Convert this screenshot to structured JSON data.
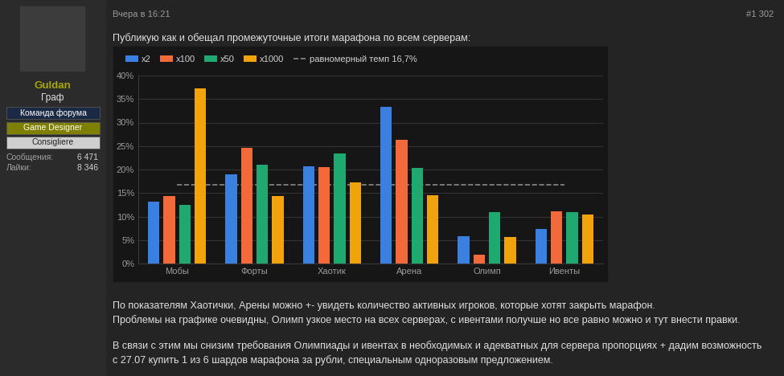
{
  "user": {
    "name": "Guldan",
    "rank": "Граф",
    "badges": [
      "Команда форума",
      "Game Designer",
      "Consigliere"
    ],
    "stats": [
      {
        "label": "Сообщения:",
        "value": "6 471"
      },
      {
        "label": "Лайки:",
        "value": "8 346"
      }
    ]
  },
  "post": {
    "date": "Вчера в 16:21",
    "number": "#1 302",
    "intro": "Публикую как и обещал промежуточные итоги марафона по всем серверам:",
    "paragraphs": [
      [
        "По показателям Хаотички, Арены можно +- увидеть количество активных игроков, которые хотят закрыть марафон.",
        "Проблемы на графике очевидны, Олимп узкое место на всех серверах, с ивентами получше но все равно можно и тут внести правки."
      ],
      [
        "В связи с этим мы снизим требования Олимпиады и ивентах в необходимых и адекватных для сервера пропорциях + дадим возможность",
        "с 27.07 купить 1 из 6 шардов марафона за рубли, специальным одноразовым предложением."
      ]
    ]
  },
  "chart_data": {
    "type": "bar",
    "categories": [
      "Мобы",
      "Форты",
      "Хаотик",
      "Арена",
      "Олимп",
      "Ивенты"
    ],
    "series": [
      {
        "name": "x2",
        "color": "#3a80e0",
        "values": [
          13.2,
          18.9,
          20.6,
          33.4,
          5.8,
          7.3
        ]
      },
      {
        "name": "x100",
        "color": "#f26a3a",
        "values": [
          14.3,
          24.7,
          20.5,
          26.4,
          1.8,
          11.1
        ]
      },
      {
        "name": "x50",
        "color": "#1fa971",
        "values": [
          12.4,
          21.0,
          23.4,
          20.4,
          10.9,
          10.9
        ]
      },
      {
        "name": "x1000",
        "color": "#f0a30a",
        "values": [
          37.2,
          14.3,
          17.2,
          14.6,
          5.6,
          10.4
        ]
      }
    ],
    "reference_line": {
      "value": 16.7,
      "label": "равномерный темп",
      "value_label": "16,7%"
    },
    "ylim": [
      0,
      40
    ],
    "yticks": [
      {
        "value": 0,
        "label": "0%"
      },
      {
        "value": 5,
        "label": "5%"
      },
      {
        "value": 10,
        "label": "10%"
      },
      {
        "value": 15,
        "label": "15%"
      },
      {
        "value": 20,
        "label": "20%"
      },
      {
        "value": 25,
        "label": "25%"
      },
      {
        "value": 30,
        "label": "30%"
      },
      {
        "value": 35,
        "label": "35%"
      },
      {
        "value": 40,
        "label": "40%"
      }
    ],
    "grid": true,
    "legend": "upper left"
  }
}
